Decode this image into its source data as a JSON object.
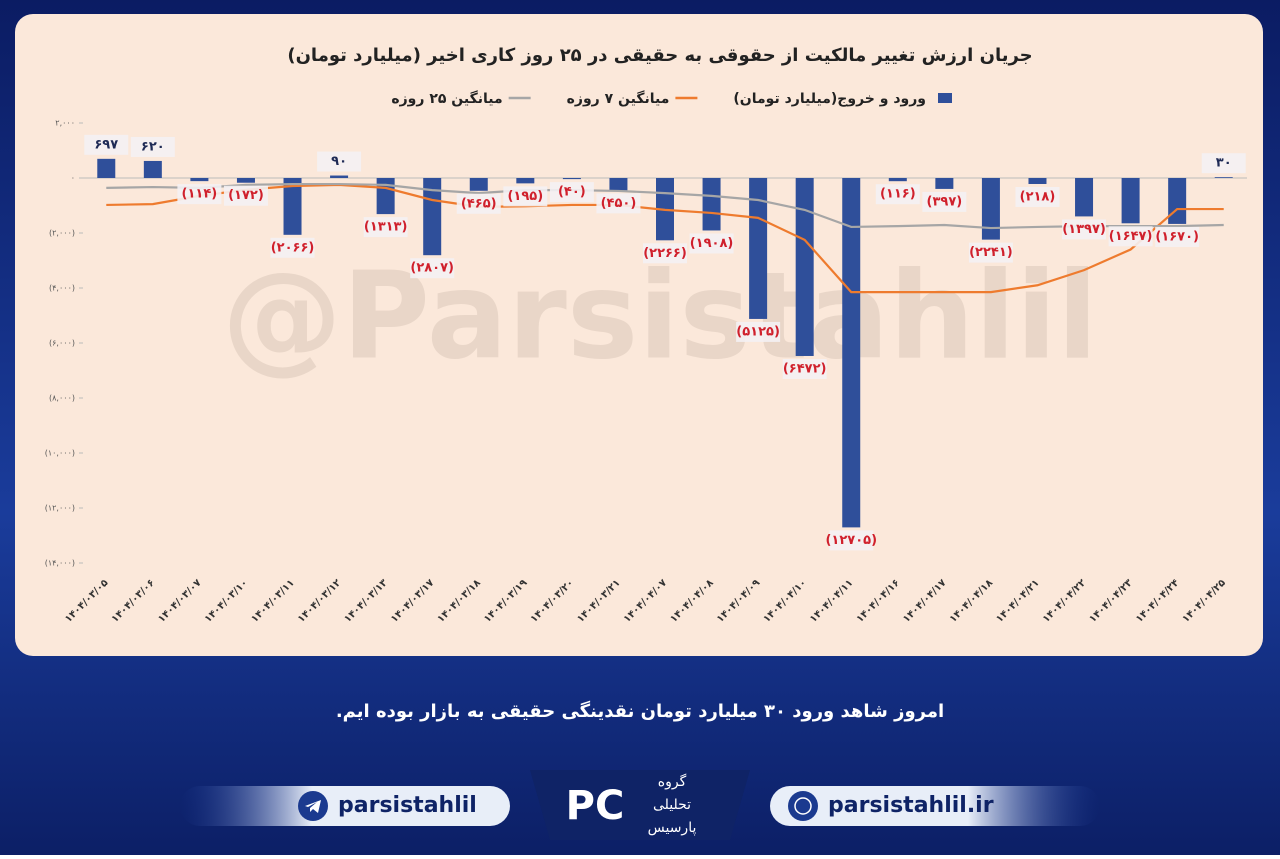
{
  "chart_data": {
    "type": "bar",
    "title": "جریان ارزش تغییر مالکیت از حقوقی به حقیقی در ۲۵ روز کاری اخیر (میلیارد تومان)",
    "watermark": "@Parsistahlil",
    "categories": [
      "۱۴۰۴/۰۳/۰۵",
      "۱۴۰۴/۰۳/۰۶",
      "۱۴۰۴/۰۳/۰۷",
      "۱۴۰۴/۰۳/۱۰",
      "۱۴۰۴/۰۳/۱۱",
      "۱۴۰۴/۰۳/۱۲",
      "۱۴۰۴/۰۳/۱۳",
      "۱۴۰۴/۰۳/۱۷",
      "۱۴۰۴/۰۳/۱۸",
      "۱۴۰۴/۰۳/۱۹",
      "۱۴۰۴/۰۳/۲۰",
      "۱۴۰۴/۰۳/۲۱",
      "۱۴۰۴/۰۴/۰۷",
      "۱۴۰۴/۰۴/۰۸",
      "۱۴۰۴/۰۴/۰۹",
      "۱۴۰۴/۰۴/۱۰",
      "۱۴۰۴/۰۴/۱۱",
      "۱۴۰۴/۰۴/۱۶",
      "۱۴۰۴/۰۴/۱۷",
      "۱۴۰۴/۰۴/۱۸",
      "۱۴۰۴/۰۴/۲۱",
      "۱۴۰۴/۰۴/۲۲",
      "۱۴۰۴/۰۴/۲۳",
      "۱۴۰۴/۰۴/۲۴",
      "۱۴۰۴/۰۴/۲۵"
    ],
    "series": [
      {
        "name": "ورود و خروج(میلیارد تومان)",
        "type": "bar",
        "color": "#2f4f9a",
        "values": [
          697,
          620,
          -114,
          -172,
          -2066,
          90,
          -1313,
          -2807,
          -465,
          -195,
          -40,
          -450,
          -2266,
          -1908,
          -5125,
          -6472,
          -12705,
          -116,
          -397,
          -2241,
          -218,
          -1397,
          -1647,
          -1670,
          30
        ],
        "value_labels": [
          "۶۹۷",
          "۶۲۰",
          "(۱۱۴)",
          "(۱۷۲)",
          "(۲۰۶۶)",
          "۹۰",
          "(۱۳۱۳)",
          "(۲۸۰۷)",
          "(۴۶۵)",
          "(۱۹۵)",
          "(۴۰)",
          "(۴۵۰)",
          "(۲۲۶۶)",
          "(۱۹۰۸)",
          "(۵۱۲۵)",
          "(۶۴۷۲)",
          "(۱۲۷۰۵)",
          "(۱۱۶)",
          "(۳۹۷)",
          "(۲۲۴۱)",
          "(۲۱۸)",
          "(۱۳۹۷)",
          "(۱۶۴۷)",
          "(۱۶۷۰)",
          "۳۰"
        ]
      },
      {
        "name": "میانگین ۷ روزه",
        "type": "line",
        "color": "#ee7b2e",
        "values": [
          -980,
          -950,
          -650,
          -430,
          -290,
          -250,
          -360,
          -800,
          -1050,
          -1030,
          -980,
          -980,
          -1160,
          -1270,
          -1450,
          -2250,
          -4150,
          -4150,
          -4150,
          -4150,
          -3900,
          -3350,
          -2600,
          -1130,
          -1130
        ]
      },
      {
        "name": "میانگین ۲۵ روزه",
        "type": "line",
        "color": "#a6a6a6",
        "values": [
          -360,
          -330,
          -360,
          -250,
          -220,
          -220,
          -250,
          -440,
          -550,
          -440,
          -440,
          -470,
          -550,
          -650,
          -800,
          -1160,
          -1780,
          -1750,
          -1710,
          -1820,
          -1780,
          -1750,
          -1750,
          -1750,
          -1710
        ]
      }
    ],
    "ylim": [
      -14000,
      2000
    ],
    "yticks": [
      {
        "value": 2000,
        "label": "۲,۰۰۰"
      },
      {
        "value": 0,
        "label": "۰"
      },
      {
        "value": -2000,
        "label": "(۲,۰۰۰)"
      },
      {
        "value": -4000,
        "label": "(۴,۰۰۰)"
      },
      {
        "value": -6000,
        "label": "(۶,۰۰۰)"
      },
      {
        "value": -8000,
        "label": "(۸,۰۰۰)"
      },
      {
        "value": -10000,
        "label": "(۱۰,۰۰۰)"
      },
      {
        "value": -12000,
        "label": "(۱۲,۰۰۰)"
      },
      {
        "value": -14000,
        "label": "(۱۴,۰۰۰)"
      }
    ],
    "grid": false,
    "legend": "top"
  },
  "caption": "امروز شاهد ورود ۳۰ میلیارد تومان نقدینگی حقیقی به بازار بوده ایم.",
  "footer": {
    "telegram": "parsistahlil",
    "website": "parsistahlil.ir",
    "logo": [
      "گروه",
      "تحلیلی",
      "پارسیس"
    ]
  }
}
